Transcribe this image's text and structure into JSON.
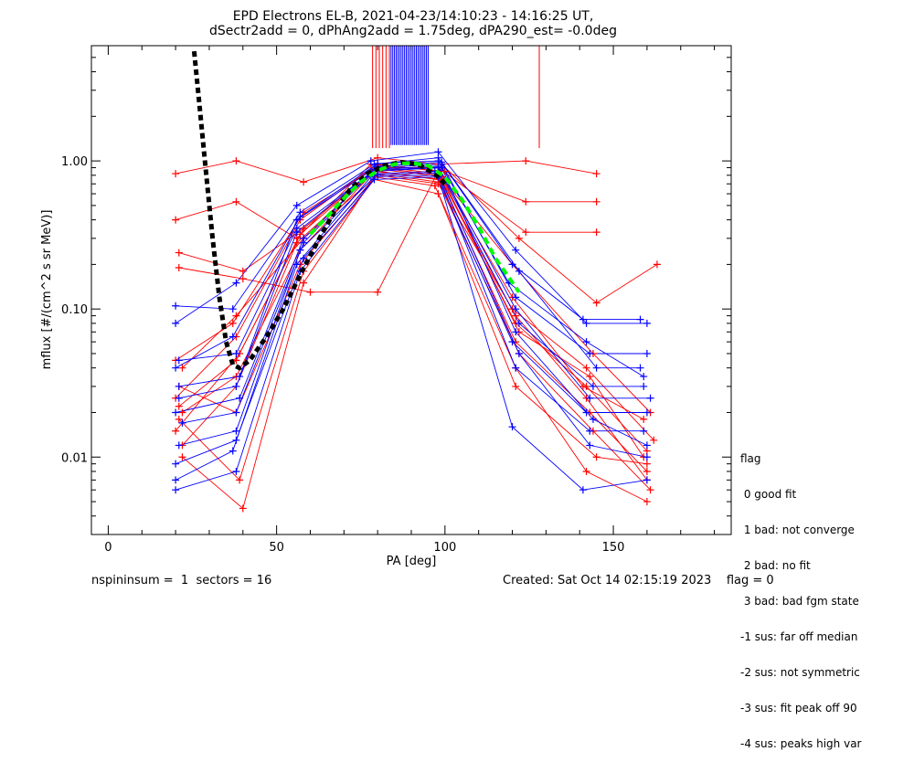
{
  "chart_data": {
    "type": "line",
    "title": "EPD Electrons EL-B, 2021-04-23/14:10:23 - 14:16:25 UT,",
    "subtitle": "dSectr2add = 0, dPhAng2add = 1.75deg, dPA290_est=  -0.0deg",
    "xlabel": "PA [deg]",
    "ylabel": "mflux [#/(cm^2 s sr MeV)]",
    "xlim": [
      -5,
      185
    ],
    "ylim": [
      0.003,
      6.0
    ],
    "yscale": "log",
    "x_ticks": [
      0,
      50,
      100,
      150
    ],
    "y_ticks": [
      {
        "value": 0.01,
        "label": "0.01"
      },
      {
        "value": 0.1,
        "label": "0.10"
      },
      {
        "value": 1.0,
        "label": "1.00"
      }
    ],
    "grid": false,
    "colors": {
      "red": "#ff0000",
      "blue": "#0000ff",
      "black": "#000000",
      "green": "#00ff00"
    },
    "series": [
      {
        "color": "red",
        "x": [
          20,
          38,
          58,
          80,
          98,
          124,
          145
        ],
        "y": [
          0.82,
          1.0,
          0.72,
          1.05,
          0.95,
          1.0,
          0.82
        ]
      },
      {
        "color": "red",
        "x": [
          20,
          38,
          56,
          78,
          100,
          124,
          145
        ],
        "y": [
          0.4,
          0.53,
          0.3,
          0.95,
          0.85,
          0.53,
          0.53
        ]
      },
      {
        "color": "red",
        "x": [
          21,
          40,
          58,
          80,
          98,
          124,
          145
        ],
        "y": [
          0.24,
          0.18,
          0.35,
          0.9,
          0.9,
          0.33,
          0.33
        ]
      },
      {
        "color": "red",
        "x": [
          21,
          40,
          60,
          80,
          99,
          122,
          145,
          163
        ],
        "y": [
          0.19,
          0.16,
          0.13,
          0.13,
          0.95,
          0.3,
          0.11,
          0.2
        ]
      },
      {
        "color": "red",
        "x": [
          22,
          38,
          58,
          80,
          98,
          120,
          142,
          162
        ],
        "y": [
          0.04,
          0.09,
          0.3,
          0.8,
          0.7,
          0.1,
          0.04,
          0.013
        ]
      },
      {
        "color": "red",
        "x": [
          22,
          38,
          57,
          79,
          99,
          121,
          142,
          160
        ],
        "y": [
          0.02,
          0.035,
          0.25,
          0.85,
          0.75,
          0.08,
          0.03,
          0.011
        ]
      },
      {
        "color": "red",
        "x": [
          20,
          39,
          58,
          80,
          98,
          121,
          143,
          160
        ],
        "y": [
          0.015,
          0.05,
          0.35,
          0.9,
          0.8,
          0.06,
          0.02,
          0.008
        ]
      },
      {
        "color": "red",
        "x": [
          21,
          38,
          57,
          80,
          98,
          122,
          144,
          161
        ],
        "y": [
          0.03,
          0.02,
          0.2,
          0.82,
          0.72,
          0.05,
          0.015,
          0.006
        ]
      },
      {
        "color": "red",
        "x": [
          22,
          40,
          58,
          79,
          97,
          121,
          142,
          160
        ],
        "y": [
          0.01,
          0.0045,
          0.15,
          0.78,
          0.68,
          0.04,
          0.008,
          0.005
        ]
      },
      {
        "color": "red",
        "x": [
          20,
          38,
          57,
          80,
          98,
          120,
          141,
          159
        ],
        "y": [
          0.025,
          0.065,
          0.4,
          0.95,
          0.85,
          0.12,
          0.03,
          0.018
        ]
      },
      {
        "color": "red",
        "x": [
          21,
          39,
          58,
          79,
          98,
          121,
          145,
          160
        ],
        "y": [
          0.018,
          0.007,
          0.18,
          0.75,
          0.6,
          0.03,
          0.01,
          0.009
        ]
      },
      {
        "color": "red",
        "x": [
          22,
          38,
          56,
          80,
          99,
          122,
          143,
          159
        ],
        "y": [
          0.012,
          0.03,
          0.28,
          0.88,
          0.78,
          0.07,
          0.035,
          0.01
        ]
      },
      {
        "color": "red",
        "x": [
          20,
          37,
          58,
          80,
          98,
          120,
          144,
          161
        ],
        "y": [
          0.045,
          0.08,
          0.45,
          0.92,
          0.82,
          0.2,
          0.05,
          0.02
        ]
      },
      {
        "color": "red",
        "x": [
          21,
          38,
          57,
          79,
          99,
          121,
          142,
          160
        ],
        "y": [
          0.022,
          0.045,
          0.32,
          0.86,
          0.74,
          0.09,
          0.025,
          0.007
        ]
      },
      {
        "color": "blue",
        "x": [
          20,
          38,
          56,
          78,
          98,
          121,
          142,
          160
        ],
        "y": [
          0.08,
          0.15,
          0.5,
          1.0,
          1.15,
          0.25,
          0.08,
          0.08
        ]
      },
      {
        "color": "blue",
        "x": [
          20,
          37,
          57,
          79,
          98,
          120,
          141,
          158
        ],
        "y": [
          0.105,
          0.1,
          0.45,
          0.95,
          1.05,
          0.2,
          0.085,
          0.085
        ]
      },
      {
        "color": "blue",
        "x": [
          21,
          38,
          56,
          80,
          99,
          121,
          143,
          160
        ],
        "y": [
          0.045,
          0.05,
          0.35,
          0.9,
          0.95,
          0.12,
          0.05,
          0.05
        ]
      },
      {
        "color": "blue",
        "x": [
          20,
          39,
          58,
          79,
          98,
          122,
          144,
          159
        ],
        "y": [
          0.02,
          0.025,
          0.3,
          0.85,
          0.9,
          0.08,
          0.03,
          0.03
        ]
      },
      {
        "color": "blue",
        "x": [
          21,
          38,
          57,
          80,
          97,
          120,
          142,
          160
        ],
        "y": [
          0.012,
          0.015,
          0.25,
          0.82,
          0.85,
          0.06,
          0.02,
          0.02
        ]
      },
      {
        "color": "blue",
        "x": [
          20,
          37,
          56,
          78,
          98,
          121,
          143,
          159
        ],
        "y": [
          0.007,
          0.011,
          0.2,
          0.78,
          0.8,
          0.04,
          0.015,
          0.015
        ]
      },
      {
        "color": "blue",
        "x": [
          20,
          38,
          57,
          79,
          98,
          120,
          141,
          160
        ],
        "y": [
          0.006,
          0.008,
          0.18,
          0.75,
          0.78,
          0.016,
          0.006,
          0.007
        ]
      },
      {
        "color": "blue",
        "x": [
          21,
          39,
          56,
          80,
          99,
          122,
          145,
          158
        ],
        "y": [
          0.03,
          0.035,
          0.4,
          0.92,
          0.98,
          0.18,
          0.04,
          0.04
        ]
      },
      {
        "color": "blue",
        "x": [
          22,
          38,
          58,
          79,
          98,
          121,
          143,
          161
        ],
        "y": [
          0.017,
          0.02,
          0.28,
          0.88,
          0.92,
          0.1,
          0.025,
          0.025
        ]
      },
      {
        "color": "blue",
        "x": [
          20,
          37,
          57,
          80,
          98,
          119,
          142,
          159
        ],
        "y": [
          0.04,
          0.065,
          0.42,
          0.96,
          1.0,
          0.15,
          0.06,
          0.035
        ]
      },
      {
        "color": "blue",
        "x": [
          21,
          38,
          56,
          79,
          99,
          121,
          144,
          160
        ],
        "y": [
          0.025,
          0.03,
          0.33,
          0.87,
          0.9,
          0.07,
          0.018,
          0.012
        ]
      },
      {
        "color": "blue",
        "x": [
          20,
          38,
          58,
          80,
          98,
          122,
          143,
          160
        ],
        "y": [
          0.009,
          0.013,
          0.22,
          0.8,
          0.83,
          0.05,
          0.012,
          0.01
        ]
      },
      {
        "color": "black",
        "style": "dashed",
        "x": [
          25.5,
          27,
          29,
          31,
          33,
          35,
          37,
          39,
          42,
          47,
          52,
          57,
          62,
          67,
          72,
          77,
          82,
          87,
          92,
          97,
          100
        ],
        "y": [
          5.5,
          2.5,
          0.85,
          0.3,
          0.12,
          0.06,
          0.042,
          0.04,
          0.045,
          0.065,
          0.1,
          0.17,
          0.28,
          0.45,
          0.65,
          0.82,
          0.93,
          0.98,
          0.95,
          0.82,
          0.7
        ]
      },
      {
        "color": "green",
        "style": "dashed",
        "x": [
          60,
          65,
          70,
          75,
          80,
          85,
          90,
          95,
          100,
          105,
          110,
          115,
          122
        ],
        "y": [
          0.32,
          0.42,
          0.56,
          0.72,
          0.86,
          0.95,
          0.97,
          0.93,
          0.78,
          0.55,
          0.36,
          0.22,
          0.13
        ]
      },
      {
        "color": "red",
        "style": "vertical",
        "x": [
          78.5,
          79.5,
          80.5,
          81.5,
          82.5,
          83.5,
          128
        ],
        "y_from": 1.22,
        "y_to": 6.0
      },
      {
        "color": "blue",
        "style": "vertical",
        "x": [
          84,
          84.5,
          85,
          85.5,
          86,
          86.5,
          87,
          87.5,
          88,
          88.5,
          89,
          89.5,
          90,
          90.5,
          91,
          91.5,
          92,
          92.5,
          93,
          93.5,
          94,
          94.5,
          95
        ],
        "y_from": 1.28,
        "y_to": 6.0
      }
    ]
  },
  "legend": {
    "title": "flag",
    "items": [
      " 0 good fit",
      " 1 bad: not converge",
      " 2 bad: no fit",
      " 3 bad: bad fgm state",
      "-1 sus: far off median",
      "-2 sus: not symmetric",
      "-3 sus: fit peak off 90",
      "-4 sus: peaks high var"
    ]
  },
  "footer": {
    "left": "nspininsum =  1  sectors = 16",
    "right": "Created: Sat Oct 14 02:15:19 2023    flag = 0"
  }
}
